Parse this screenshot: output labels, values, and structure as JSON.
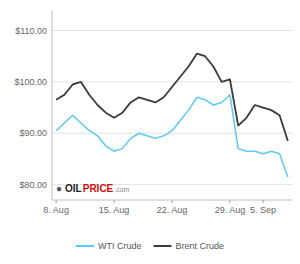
{
  "chart_data": {
    "type": "line",
    "x": [
      0,
      1,
      2,
      3,
      4,
      5,
      6,
      7,
      8,
      9,
      10,
      11,
      12,
      13,
      14,
      15,
      16,
      17,
      18,
      19,
      20,
      21,
      22,
      23,
      24,
      25,
      26,
      27,
      28
    ],
    "xlim": [
      -0.5,
      28.5
    ],
    "xticks": [
      {
        "value": 0,
        "label": "8. Aug"
      },
      {
        "value": 7,
        "label": "15. Aug"
      },
      {
        "value": 14,
        "label": "22. Aug"
      },
      {
        "value": 21,
        "label": "29. Aug"
      },
      {
        "value": 25,
        "label": "5. Sep"
      }
    ],
    "ylim": [
      77,
      114
    ],
    "yticks": [
      {
        "value": 80,
        "label": "$80.00"
      },
      {
        "value": 90,
        "label": "$90.00"
      },
      {
        "value": 100,
        "label": "$100.00"
      },
      {
        "value": 110,
        "label": "$110.00"
      }
    ],
    "grid": "y",
    "legend": "bottom",
    "series": [
      {
        "name": "WTI Crude",
        "color": "#5bc8f5",
        "values": [
          90.5,
          92.0,
          93.5,
          92.0,
          90.5,
          89.5,
          87.5,
          86.5,
          87.0,
          89.0,
          90.0,
          89.5,
          89.0,
          89.5,
          90.5,
          92.5,
          94.5,
          97.0,
          96.5,
          95.5,
          96.0,
          97.5,
          87.0,
          86.5,
          86.5,
          86.0,
          86.5,
          86.0,
          81.5
        ]
      },
      {
        "name": "Brent Crude",
        "color": "#3a3a3a",
        "values": [
          96.5,
          97.5,
          99.5,
          100.0,
          97.5,
          95.5,
          94.0,
          93.0,
          94.0,
          96.0,
          97.0,
          96.5,
          96.0,
          97.0,
          99.0,
          101.0,
          103.0,
          105.5,
          105.0,
          103.0,
          100.0,
          100.5,
          91.5,
          93.0,
          95.5,
          95.0,
          94.5,
          93.5,
          88.5
        ]
      }
    ],
    "annotations": [
      {
        "text": "●",
        "color": "#555555"
      },
      {
        "text": "OIL",
        "color": "#222222"
      },
      {
        "text": "PRICE",
        "color": "#cc1111"
      },
      {
        "text": ".com",
        "color": "#888888"
      }
    ]
  }
}
